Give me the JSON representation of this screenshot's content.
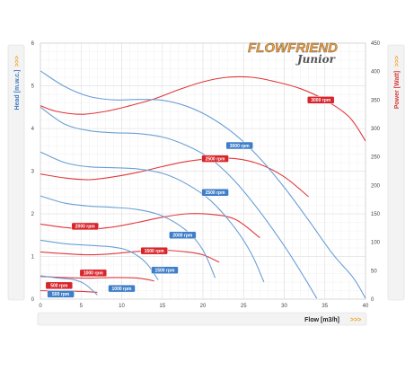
{
  "logo": {
    "brand": "FLOWFRIEND",
    "edition": "Junior"
  },
  "colors": {
    "head": "#6b9fd4",
    "power": "#e0383d",
    "grid": "#dddddd",
    "title_blue": "#3d78c0",
    "title_red": "#d93a3a",
    "arrow": "#f0a020"
  },
  "chart_data": {
    "type": "line",
    "xlabel": "Flow [m3/h]",
    "ylabel": "Head [m.w.c.]",
    "y2label": "Power [Watt]",
    "xlim": [
      0,
      40
    ],
    "ylim": [
      0,
      6
    ],
    "y2lim": [
      0,
      450
    ],
    "xticks": [
      0,
      5,
      10,
      15,
      20,
      25,
      30,
      35,
      40
    ],
    "yticks": [
      0,
      1,
      2,
      3,
      4,
      5,
      6
    ],
    "y2ticks": [
      0,
      50,
      100,
      150,
      200,
      250,
      300,
      350,
      400,
      450
    ],
    "arrow": ">>>",
    "head_series": [
      {
        "name": "3000 rpm",
        "label_at": [
          24.5,
          3.6
        ],
        "points": [
          [
            0,
            5.35
          ],
          [
            3,
            4.98
          ],
          [
            6,
            4.75
          ],
          [
            9,
            4.67
          ],
          [
            12,
            4.68
          ],
          [
            15,
            4.66
          ],
          [
            18,
            4.52
          ],
          [
            21,
            4.25
          ],
          [
            24,
            3.85
          ],
          [
            27,
            3.3
          ],
          [
            30,
            2.62
          ],
          [
            33,
            1.85
          ],
          [
            36,
            1.05
          ],
          [
            38.5,
            0.5
          ],
          [
            40,
            0.02
          ]
        ]
      },
      {
        "name": "2500 rpm",
        "label_at": [
          21.5,
          2.5
        ],
        "points": [
          [
            0,
            4.5
          ],
          [
            3,
            4.1
          ],
          [
            6,
            3.95
          ],
          [
            9,
            3.9
          ],
          [
            12,
            3.88
          ],
          [
            15,
            3.8
          ],
          [
            18,
            3.6
          ],
          [
            21,
            3.28
          ],
          [
            24,
            2.75
          ],
          [
            27,
            2.05
          ],
          [
            30,
            1.25
          ],
          [
            32.5,
            0.5
          ],
          [
            34,
            0.02
          ]
        ]
      },
      {
        "name": "2000 rpm",
        "label_at": [
          17.5,
          1.5
        ],
        "points": [
          [
            0,
            3.45
          ],
          [
            3,
            3.2
          ],
          [
            6,
            3.1
          ],
          [
            9,
            3.08
          ],
          [
            12,
            3.05
          ],
          [
            15,
            2.95
          ],
          [
            18,
            2.7
          ],
          [
            21,
            2.3
          ],
          [
            24,
            1.65
          ],
          [
            26,
            1.05
          ],
          [
            27.5,
            0.4
          ]
        ]
      },
      {
        "name": "1500 rpm",
        "label_at": [
          15.3,
          0.68
        ],
        "points": [
          [
            0,
            2.42
          ],
          [
            3,
            2.25
          ],
          [
            6,
            2.18
          ],
          [
            9,
            2.15
          ],
          [
            12,
            2.1
          ],
          [
            15,
            1.95
          ],
          [
            18,
            1.6
          ],
          [
            20,
            1.15
          ],
          [
            21.5,
            0.5
          ]
        ]
      },
      {
        "name": "1000 rpm",
        "label_at": [
          10,
          0.25
        ],
        "points": [
          [
            0,
            1.38
          ],
          [
            3,
            1.3
          ],
          [
            6,
            1.26
          ],
          [
            9,
            1.22
          ],
          [
            11,
            1.12
          ],
          [
            13,
            0.85
          ],
          [
            14.5,
            0.45
          ]
        ]
      },
      {
        "name": "500 rpm",
        "label_at": [
          2.5,
          0.12
        ],
        "points": [
          [
            0,
            0.55
          ],
          [
            2,
            0.5
          ],
          [
            4,
            0.46
          ],
          [
            5.5,
            0.35
          ],
          [
            7,
            0.1
          ]
        ]
      }
    ],
    "power_series": [
      {
        "name": "3000 rpm",
        "label_at": [
          34.5,
          350
        ],
        "points": [
          [
            0,
            340
          ],
          [
            2,
            330
          ],
          [
            5,
            325
          ],
          [
            8,
            330
          ],
          [
            11,
            340
          ],
          [
            14,
            352
          ],
          [
            17,
            368
          ],
          [
            20,
            382
          ],
          [
            23,
            390
          ],
          [
            26,
            390
          ],
          [
            29,
            382
          ],
          [
            32,
            370
          ],
          [
            35,
            350
          ],
          [
            38,
            320
          ],
          [
            40,
            278
          ]
        ]
      },
      {
        "name": "2500 rpm",
        "label_at": [
          21.5,
          247
        ],
        "points": [
          [
            0,
            220
          ],
          [
            3,
            213
          ],
          [
            6,
            210
          ],
          [
            9,
            215
          ],
          [
            12,
            223
          ],
          [
            15,
            233
          ],
          [
            18,
            242
          ],
          [
            21,
            247
          ],
          [
            24,
            247
          ],
          [
            27,
            237
          ],
          [
            30,
            215
          ],
          [
            33,
            180
          ]
        ]
      },
      {
        "name": "2000 rpm",
        "label_at": [
          5.5,
          128
        ],
        "points": [
          [
            0,
            132
          ],
          [
            3,
            126
          ],
          [
            6,
            123
          ],
          [
            9,
            127
          ],
          [
            12,
            135
          ],
          [
            15,
            144
          ],
          [
            18,
            150
          ],
          [
            21,
            149
          ],
          [
            24,
            140
          ],
          [
            27,
            108
          ]
        ]
      },
      {
        "name": "1500 rpm",
        "label_at": [
          14,
          85
        ],
        "points": [
          [
            0,
            83
          ],
          [
            3,
            80
          ],
          [
            6,
            78
          ],
          [
            9,
            80
          ],
          [
            12,
            84
          ],
          [
            15,
            86
          ],
          [
            18,
            83
          ],
          [
            20,
            78
          ],
          [
            22,
            65
          ]
        ]
      },
      {
        "name": "1000 rpm",
        "label_at": [
          6.5,
          46
        ],
        "points": [
          [
            0,
            40
          ],
          [
            3,
            38
          ],
          [
            6,
            37
          ],
          [
            9,
            38
          ],
          [
            12,
            37
          ],
          [
            14,
            32
          ]
        ]
      },
      {
        "name": "500 rpm",
        "label_at": [
          2.3,
          24
        ],
        "points": [
          [
            0,
            15
          ],
          [
            2,
            14
          ],
          [
            4,
            14
          ],
          [
            6,
            13
          ],
          [
            7,
            12
          ]
        ]
      }
    ]
  }
}
